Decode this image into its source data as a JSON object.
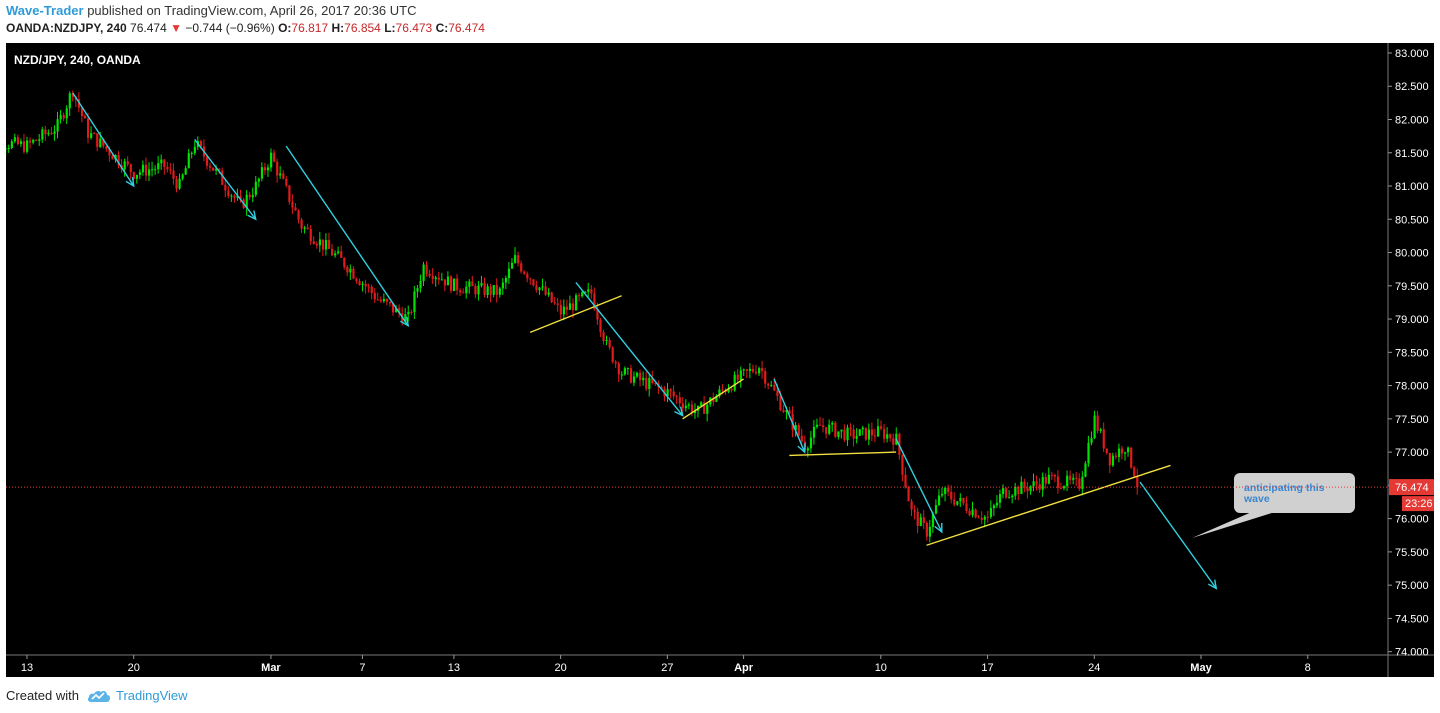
{
  "header": {
    "author": "Wave-Trader",
    "published": "published on TradingView.com, April 26, 2017 20:36 UTC",
    "symbol_line": "OANDA:NZDJPY, 240",
    "last": "76.474",
    "change": "−0.744 (−0.96%)",
    "o_label": "O:",
    "o_val": "76.817",
    "h_label": "H:",
    "h_val": "76.854",
    "l_label": "L:",
    "l_val": "76.473",
    "c_label": "C:",
    "c_val": "76.474"
  },
  "footer": {
    "created_with": "Created with",
    "brand": "TradingView"
  },
  "colors": {
    "background": "#000000",
    "up_candle": "#00e300",
    "down_candle": "#e01b1b",
    "arrow": "#30d0e0",
    "trendline": "#f0e040",
    "price_line": "#e53935",
    "callout_bg": "#d0d0d0",
    "callout_text": "#3a86d0"
  },
  "chart_data": {
    "type": "candlestick",
    "title": "NZD/JPY, 240, OANDA",
    "x_tick_labels": [
      "13",
      "20",
      "Mar",
      "7",
      "13",
      "20",
      "27",
      "Apr",
      "10",
      "17",
      "24",
      "May",
      "8"
    ],
    "y_tick_labels": [
      "83.000",
      "82.500",
      "82.000",
      "81.500",
      "81.000",
      "80.500",
      "80.000",
      "79.500",
      "79.000",
      "78.500",
      "78.000",
      "77.500",
      "77.000",
      "76.500",
      "76.000",
      "75.500",
      "75.000",
      "74.500",
      "74.000"
    ],
    "ylim": [
      73.95,
      83.15
    ],
    "last_price": "76.474",
    "countdown": "23:26",
    "price_path": [
      {
        "date": "Feb 10",
        "close": 81.7
      },
      {
        "date": "Feb 13",
        "close": 81.6
      },
      {
        "date": "Feb 15",
        "close": 81.9
      },
      {
        "date": "Feb 16",
        "close": 82.45
      },
      {
        "date": "Feb 17",
        "close": 81.8
      },
      {
        "date": "Feb 20",
        "close": 81.2
      },
      {
        "date": "Feb 22",
        "close": 81.3
      },
      {
        "date": "Feb 23",
        "close": 81.0
      },
      {
        "date": "Feb 24",
        "close": 81.65
      },
      {
        "date": "Feb 27",
        "close": 80.7
      },
      {
        "date": "Feb 28",
        "close": 81.0
      },
      {
        "date": "Mar 1",
        "close": 81.45
      },
      {
        "date": "Mar 3",
        "close": 80.4
      },
      {
        "date": "Mar 6",
        "close": 79.8
      },
      {
        "date": "Mar 8",
        "close": 79.3
      },
      {
        "date": "Mar 10",
        "close": 79.0
      },
      {
        "date": "Mar 11",
        "close": 79.8
      },
      {
        "date": "Mar 13",
        "close": 79.5
      },
      {
        "date": "Mar 16",
        "close": 79.4
      },
      {
        "date": "Mar 17",
        "close": 79.9
      },
      {
        "date": "Mar 20",
        "close": 79.1
      },
      {
        "date": "Mar 22",
        "close": 79.4
      },
      {
        "date": "Mar 23",
        "close": 78.6
      },
      {
        "date": "Mar 24",
        "close": 78.2
      },
      {
        "date": "Mar 27",
        "close": 77.9
      },
      {
        "date": "Mar 29",
        "close": 77.6
      },
      {
        "date": "Mar 31",
        "close": 78.0
      },
      {
        "date": "Apr 2",
        "close": 78.3
      },
      {
        "date": "Apr 3",
        "close": 77.9
      },
      {
        "date": "Apr 5",
        "close": 77.1
      },
      {
        "date": "Apr 6",
        "close": 77.4
      },
      {
        "date": "Apr 8",
        "close": 77.25
      },
      {
        "date": "Apr 10",
        "close": 77.3
      },
      {
        "date": "Apr 11",
        "close": 77.2
      },
      {
        "date": "Apr 12",
        "close": 76.1
      },
      {
        "date": "Apr 13",
        "close": 75.8
      },
      {
        "date": "Apr 14",
        "close": 76.4
      },
      {
        "date": "Apr 17",
        "close": 76.0
      },
      {
        "date": "Apr 18",
        "close": 76.4
      },
      {
        "date": "Apr 20",
        "close": 76.5
      },
      {
        "date": "Apr 21",
        "close": 76.6
      },
      {
        "date": "Apr 23",
        "close": 76.5
      },
      {
        "date": "Apr 24",
        "close": 77.5
      },
      {
        "date": "Apr 25",
        "close": 76.9
      },
      {
        "date": "Apr 26",
        "close": 77.1
      },
      {
        "date": "Apr 27",
        "close": 76.474
      }
    ],
    "arrows": [
      {
        "from": [
          "Feb 16",
          82.4
        ],
        "to": [
          "Feb 20",
          81.0
        ]
      },
      {
        "from": [
          "Feb 24",
          81.7
        ],
        "to": [
          "Feb 28",
          80.5
        ]
      },
      {
        "from": [
          "Mar 2",
          81.6
        ],
        "to": [
          "Mar 10",
          78.9
        ]
      },
      {
        "from": [
          "Mar 21",
          79.55
        ],
        "to": [
          "Mar 28",
          77.55
        ]
      },
      {
        "from": [
          "Apr 3",
          78.1
        ],
        "to": [
          "Apr 5",
          77.0
        ]
      },
      {
        "from": [
          "Apr 11",
          77.2
        ],
        "to": [
          "Apr 14",
          75.8
        ]
      },
      {
        "from": [
          "Apr 27",
          76.55
        ],
        "to": [
          "May 2",
          74.95
        ]
      }
    ],
    "trendlines": [
      {
        "from": [
          "Mar 18",
          78.8
        ],
        "to": [
          "Mar 24",
          79.35
        ]
      },
      {
        "from": [
          "Mar 28",
          77.5
        ],
        "to": [
          "Apr 1",
          78.1
        ]
      },
      {
        "from": [
          "Apr 4",
          76.95
        ],
        "to": [
          "Apr 11",
          77.0
        ]
      },
      {
        "from": [
          "Apr 13",
          75.6
        ],
        "to": [
          "Apr 29",
          76.8
        ]
      }
    ],
    "annotation": "anticipating this wave"
  }
}
